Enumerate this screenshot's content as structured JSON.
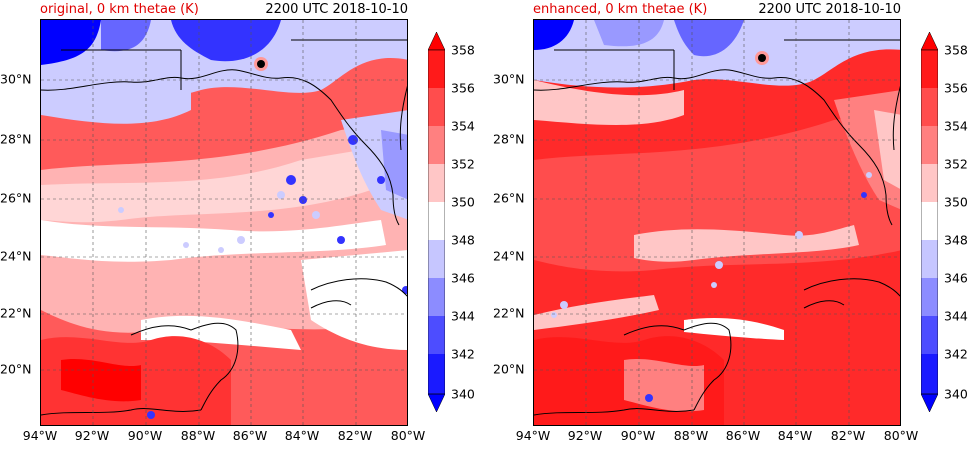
{
  "panels": [
    {
      "id": "left",
      "title": "original, 0 km thetae (K)",
      "valid_time": "2200 UTC 2018-10-10"
    },
    {
      "id": "right",
      "title": "enhanced, 0 km thetae (K)",
      "valid_time": "2200 UTC 2018-10-10"
    }
  ],
  "x_ticks": [
    "94°W",
    "92°W",
    "90°W",
    "88°W",
    "86°W",
    "84°W",
    "82°W",
    "80°W"
  ],
  "y_ticks": [
    "30°N",
    "28°N",
    "26°N",
    "24°N",
    "22°N",
    "20°N"
  ],
  "colorbar": {
    "ticks": [
      "358",
      "356",
      "354",
      "352",
      "350",
      "348",
      "346",
      "344",
      "342",
      "340"
    ],
    "colors": [
      "#ff0000",
      "#ff3333",
      "#ff6666",
      "#ff9999",
      "#ffcccc",
      "#ffffff",
      "#ccccff",
      "#9999ff",
      "#6666ff",
      "#3333ff",
      "#0000ff"
    ],
    "extend": "both"
  }
}
